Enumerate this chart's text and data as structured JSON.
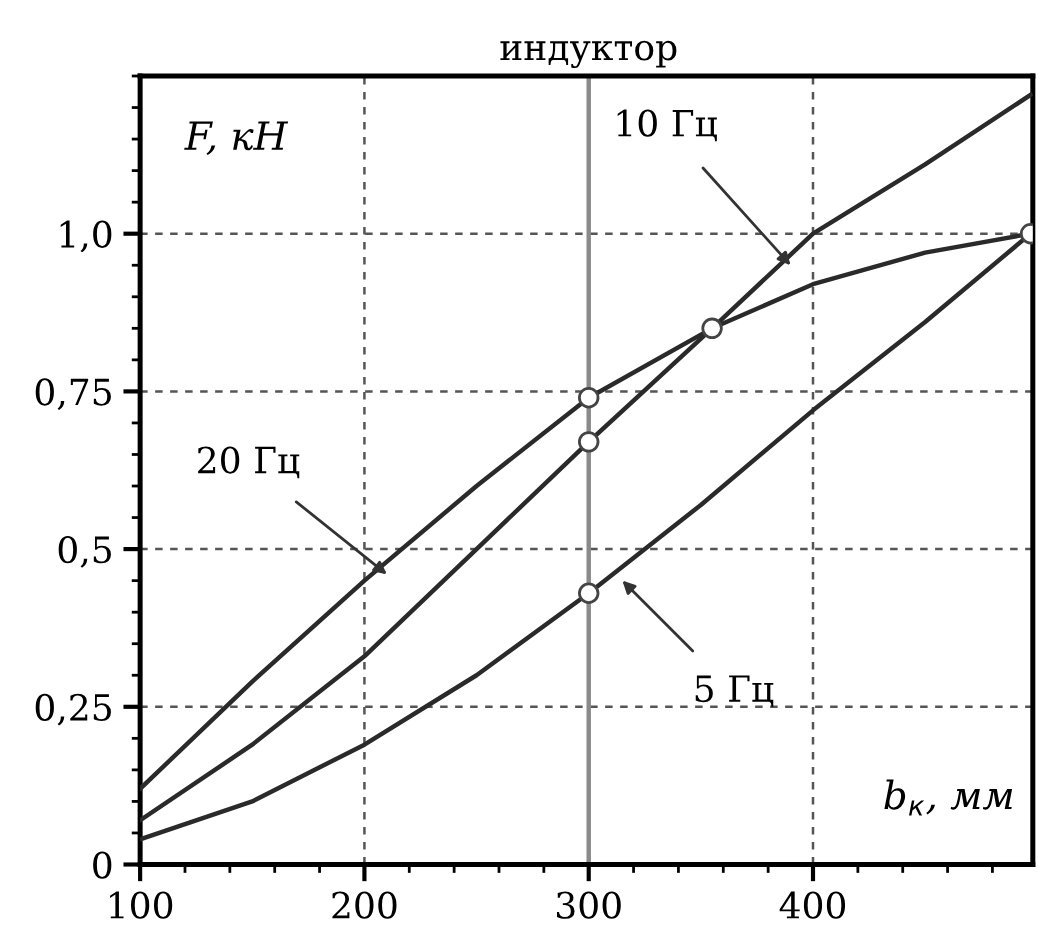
{
  "chart_data": {
    "type": "line",
    "xlabel": "b$_{к}$, мм",
    "ylabel": "F, кН",
    "xlim": [
      100,
      498
    ],
    "ylim": [
      0,
      1.25
    ],
    "xticks": [
      100,
      200,
      300,
      400
    ],
    "yticks": [
      0,
      {
        "value": 0.25,
        "label": "0,25"
      },
      {
        "value": 0.5,
        "label": "0,5"
      },
      {
        "value": 0.75,
        "label": "0,75"
      },
      {
        "value": 1.0,
        "label": "1,0"
      }
    ],
    "grid": true,
    "marker": "none",
    "line_style": "solid",
    "series": [
      {
        "color": "#2a2a2a",
        "x": [
          100,
          150,
          200,
          250,
          300,
          355,
          400,
          450,
          497
        ],
        "values": [
          0.12,
          0.29,
          0.45,
          0.6,
          0.74,
          0.85,
          0.92,
          0.97,
          1.0
        ]
      },
      {
        "color": "#2a2a2a",
        "x": [
          100,
          150,
          200,
          250,
          300,
          355,
          400,
          450,
          497
        ],
        "values": [
          0.07,
          0.19,
          0.33,
          0.5,
          0.67,
          0.85,
          1.0,
          1.11,
          1.22
        ]
      },
      {
        "color": "#2a2a2a",
        "x": [
          100,
          150,
          200,
          250,
          300,
          350,
          400,
          450,
          497
        ],
        "values": [
          0.04,
          0.1,
          0.19,
          0.3,
          0.43,
          0.57,
          0.72,
          0.86,
          1.0
        ]
      },
      {
        "type": "scatter",
        "color": "#ffffff",
        "marker": "circle",
        "x": [
          300,
          300,
          300,
          355,
          497
        ],
        "values": [
          0.74,
          0.67,
          0.43,
          0.85,
          1.0
        ]
      }
    ],
    "ref_lines": [
      {
        "axis": "x",
        "value": 300,
        "label": "индуктор",
        "color": "#8a8a8a"
      }
    ],
    "annotations": [
      {
        "text": "20 Гц",
        "x": 210,
        "y": 0.46
      },
      {
        "text": "10 Гц",
        "x": 390,
        "y": 0.95
      },
      {
        "text": "5 Гц",
        "x": 315,
        "y": 0.45
      }
    ]
  }
}
